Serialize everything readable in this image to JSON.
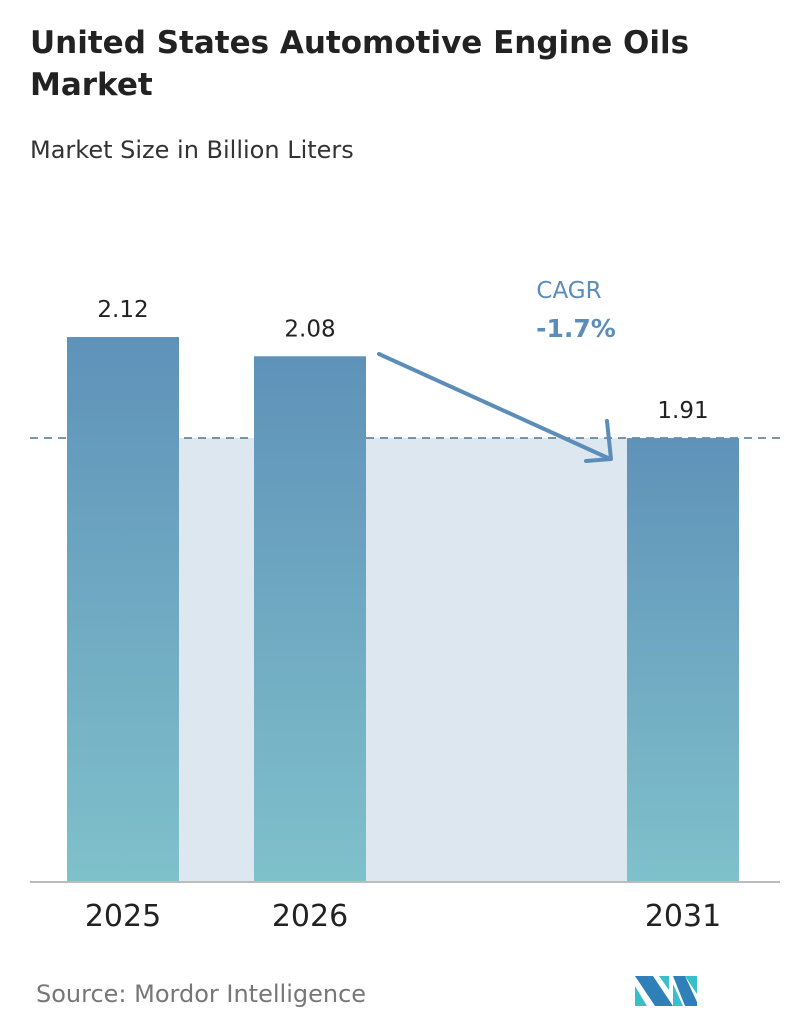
{
  "title": "United States Automotive Engine Oils Market",
  "subtitle": "Market Size in Billion Liters",
  "source": "Source:  Mordor Intelligence",
  "logo_text": "Mordor Intelligence",
  "colors": {
    "bar_top": "#5f92b9",
    "bar_bottom": "#7fc1cb",
    "shade": "#dde7f0",
    "accent": "#5b8db8",
    "dash": "#4e7590"
  },
  "chart_data": {
    "type": "bar",
    "categories": [
      "2025",
      "2026",
      "2031"
    ],
    "values": [
      2.12,
      2.08,
      1.91
    ],
    "data_labels": [
      "2.12",
      "2.08",
      "1.91"
    ],
    "title": "United States Automotive Engine Oils Market",
    "subtitle": "Market Size in Billion Liters",
    "annotation": {
      "label": "CAGR",
      "value": "-1.7%"
    },
    "grid": false,
    "reference_line": 1.91
  }
}
